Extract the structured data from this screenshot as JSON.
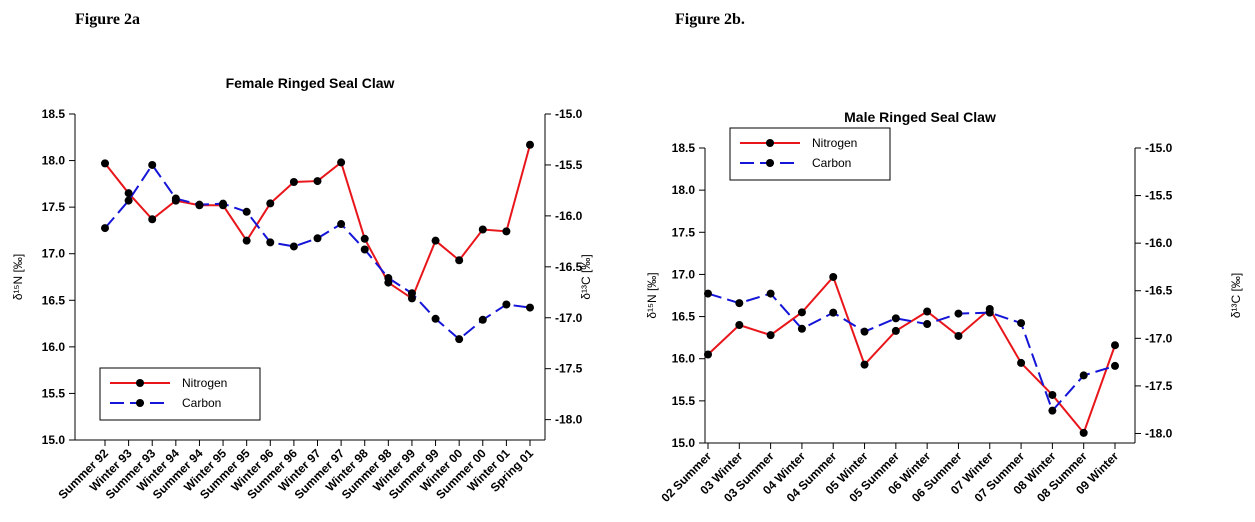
{
  "chart_data": [
    {
      "type": "line",
      "figure_label": "Figure 2a",
      "title": "Female Ringed Seal Claw",
      "y_label": "δ¹⁵N [‰]",
      "y2_label": "δ¹³C [‰]",
      "categories": [
        "Summer 92",
        "Winter 93",
        "Summer 93",
        "Winter 94",
        "Summer 94",
        "Winter 95",
        "Summer 95",
        "Winter 96",
        "Summer 96",
        "Winter 97",
        "Summer 97",
        "Winter 98",
        "Summer 98",
        "Winter 99",
        "Summer 99",
        "Winter 00",
        "Summer 00",
        "Winter 01",
        "Spring 01"
      ],
      "series": [
        {
          "name": "Nitrogen",
          "color": "#e8161b",
          "values": [
            17.97,
            17.65,
            17.37,
            17.57,
            17.52,
            17.52,
            17.14,
            17.54,
            17.77,
            17.78,
            17.98,
            17.16,
            16.69,
            16.52,
            17.14,
            16.93,
            17.26,
            17.24,
            18.17
          ]
        },
        {
          "name": "Carbon",
          "color": "#1515d8",
          "axis": "y2",
          "dashed": true,
          "values": [
            -16.12,
            -15.85,
            -15.5,
            -15.83,
            -15.89,
            -15.88,
            -15.96,
            -16.26,
            -16.3,
            -16.22,
            -16.08,
            -16.33,
            -16.61,
            -16.76,
            -17.01,
            -17.21,
            -17.02,
            -16.87,
            -16.9
          ]
        }
      ],
      "ylim": [
        15,
        18.5
      ],
      "yticks": [
        {
          "value": 15,
          "label": "15.0"
        },
        15.5,
        {
          "value": 16,
          "label": "16.0"
        },
        16.5,
        {
          "value": 17,
          "label": "17.0"
        },
        17.5,
        {
          "value": 18,
          "label": "18.0"
        },
        18.5
      ],
      "y2lim": [
        -18.2,
        -15
      ],
      "y2ticks": [
        {
          "value": -18,
          "label": "-18.0"
        },
        -17.5,
        {
          "value": -17,
          "label": "-17.0"
        },
        -16.5,
        {
          "value": -16,
          "label": "-16.0"
        },
        -15.5,
        {
          "value": -15,
          "label": "-15.0"
        }
      ],
      "legend": "lower left"
    },
    {
      "type": "line",
      "figure_label": "Figure 2b.",
      "title": "Male Ringed Seal Claw",
      "y_label": "δ¹⁵N [‰]",
      "y2_label": "δ¹³C [‰]",
      "categories": [
        "02 Summer",
        "03 Winter",
        "03 Summer",
        "04 Winter",
        "04 Summer",
        "05 Winter",
        "05 Summer",
        "06 Winter",
        "06 Summer",
        "07 Winter",
        "07 Summer",
        "08 Winter",
        "08 Summer",
        "09 Winter"
      ],
      "series": [
        {
          "name": "Nitrogen",
          "color": "#e8161b",
          "values": [
            16.05,
            16.4,
            16.28,
            16.55,
            16.97,
            15.93,
            16.33,
            16.56,
            16.27,
            16.59,
            15.95,
            15.57,
            15.12,
            16.16
          ]
        },
        {
          "name": "Carbon",
          "color": "#1515d8",
          "axis": "y2",
          "dashed": true,
          "values": [
            -16.53,
            -16.63,
            -16.53,
            -16.9,
            -16.73,
            -16.93,
            -16.79,
            -16.85,
            -16.74,
            -16.73,
            -16.84,
            -17.76,
            -17.39,
            -17.29
          ]
        }
      ],
      "ylim": [
        15,
        18.5
      ],
      "yticks": [
        {
          "value": 15,
          "label": "15.0"
        },
        15.5,
        {
          "value": 16,
          "label": "16.0"
        },
        16.5,
        {
          "value": 17,
          "label": "17.0"
        },
        17.5,
        {
          "value": 18,
          "label": "18.0"
        },
        18.5
      ],
      "y2lim": [
        -18.1,
        -15
      ],
      "y2ticks": [
        {
          "value": -18,
          "label": "-18.0"
        },
        -17.5,
        {
          "value": -17,
          "label": "-17.0"
        },
        -16.5,
        {
          "value": -16,
          "label": "-16.0"
        },
        -15.5,
        {
          "value": -15,
          "label": "-15.0"
        }
      ],
      "legend": "upper left"
    }
  ]
}
